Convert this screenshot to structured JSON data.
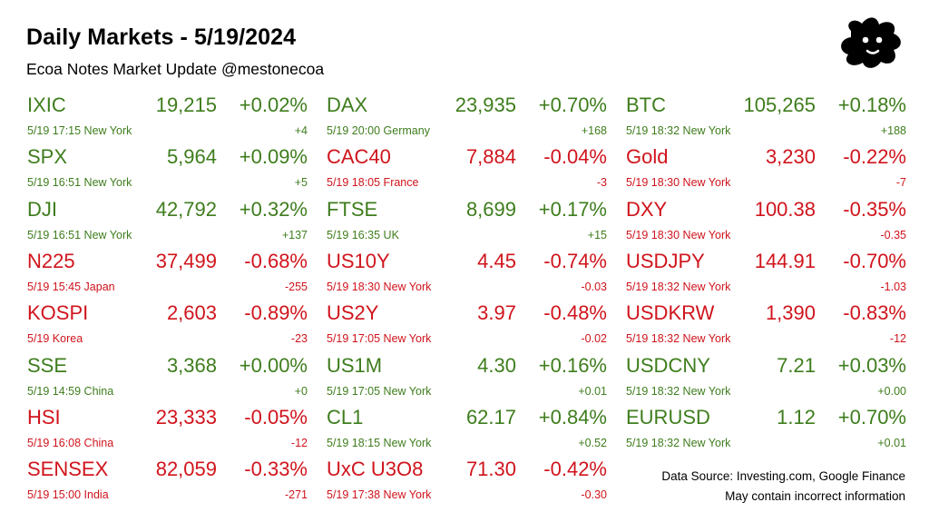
{
  "header": {
    "title": "Daily Markets - 5/19/2024",
    "subtitle": "Ecoa Notes Market Update @mestonecoa"
  },
  "logo": {
    "icon": "splat-face-icon",
    "color": "#000000"
  },
  "colors": {
    "up": "#3e7d1d",
    "down": "#d0141c"
  },
  "columns": [
    [
      {
        "symbol": "IXIC",
        "price": "19,215",
        "pct": "+0.02%",
        "meta": "5/19 17:15 New York",
        "change": "+4",
        "dir": "up"
      },
      {
        "symbol": "SPX",
        "price": "5,964",
        "pct": "+0.09%",
        "meta": "5/19 16:51 New York",
        "change": "+5",
        "dir": "up"
      },
      {
        "symbol": "DJI",
        "price": "42,792",
        "pct": "+0.32%",
        "meta": "5/19 16:51 New York",
        "change": "+137",
        "dir": "up"
      },
      {
        "symbol": "N225",
        "price": "37,499",
        "pct": "-0.68%",
        "meta": "5/19 15:45 Japan",
        "change": "-255",
        "dir": "down"
      },
      {
        "symbol": "KOSPI",
        "price": "2,603",
        "pct": "-0.89%",
        "meta": "5/19  Korea",
        "change": "-23",
        "dir": "down"
      },
      {
        "symbol": "SSE",
        "price": "3,368",
        "pct": "+0.00%",
        "meta": "5/19 14:59 China",
        "change": "+0",
        "dir": "up"
      },
      {
        "symbol": "HSI",
        "price": "23,333",
        "pct": "-0.05%",
        "meta": "5/19 16:08 China",
        "change": "-12",
        "dir": "down"
      },
      {
        "symbol": "SENSEX",
        "price": "82,059",
        "pct": "-0.33%",
        "meta": "5/19 15:00 India",
        "change": "-271",
        "dir": "down"
      }
    ],
    [
      {
        "symbol": "DAX",
        "price": "23,935",
        "pct": "+0.70%",
        "meta": "5/19 20:00 Germany",
        "change": "+168",
        "dir": "up"
      },
      {
        "symbol": "CAC40",
        "price": "7,884",
        "pct": "-0.04%",
        "meta": "5/19 18:05 France",
        "change": "-3",
        "dir": "down"
      },
      {
        "symbol": "FTSE",
        "price": "8,699",
        "pct": "+0.17%",
        "meta": "5/19 16:35 UK",
        "change": "+15",
        "dir": "up"
      },
      {
        "symbol": "US10Y",
        "price": "4.45",
        "pct": "-0.74%",
        "meta": "5/19 18:30 New York",
        "change": "-0.03",
        "dir": "down"
      },
      {
        "symbol": "US2Y",
        "price": "3.97",
        "pct": "-0.48%",
        "meta": "5/19 17:05 New York",
        "change": "-0.02",
        "dir": "down"
      },
      {
        "symbol": "US1M",
        "price": "4.30",
        "pct": "+0.16%",
        "meta": "5/19 17:05 New York",
        "change": "+0.01",
        "dir": "up"
      },
      {
        "symbol": "CL1",
        "price": "62.17",
        "pct": "+0.84%",
        "meta": "5/19 18:15 New York",
        "change": "+0.52",
        "dir": "up"
      },
      {
        "symbol": "UxC U3O8",
        "price": "71.30",
        "pct": "-0.42%",
        "meta": "5/19 17:38 New York",
        "change": "-0.30",
        "dir": "down"
      }
    ],
    [
      {
        "symbol": "BTC",
        "price": "105,265",
        "pct": "+0.18%",
        "meta": "5/19 18:32 New York",
        "change": "+188",
        "dir": "up"
      },
      {
        "symbol": "Gold",
        "price": "3,230",
        "pct": "-0.22%",
        "meta": "5/19 18:30 New York",
        "change": "-7",
        "dir": "down"
      },
      {
        "symbol": "DXY",
        "price": "100.38",
        "pct": "-0.35%",
        "meta": "5/19 18:30 New York",
        "change": "-0.35",
        "dir": "down"
      },
      {
        "symbol": "USDJPY",
        "price": "144.91",
        "pct": "-0.70%",
        "meta": "5/19 18:32 New York",
        "change": "-1.03",
        "dir": "down"
      },
      {
        "symbol": "USDKRW",
        "price": "1,390",
        "pct": "-0.83%",
        "meta": "5/19 18:32 New York",
        "change": "-12",
        "dir": "down"
      },
      {
        "symbol": "USDCNY",
        "price": "7.21",
        "pct": "+0.03%",
        "meta": "5/19 18:32 New York",
        "change": "+0.00",
        "dir": "up"
      },
      {
        "symbol": "EURUSD",
        "price": "1.12",
        "pct": "+0.70%",
        "meta": "5/19 18:32 New York",
        "change": "+0.01",
        "dir": "up"
      }
    ]
  ],
  "footer": {
    "source": "Data Source: Investing.com, Google Finance",
    "disclaimer": "May contain incorrect information"
  }
}
